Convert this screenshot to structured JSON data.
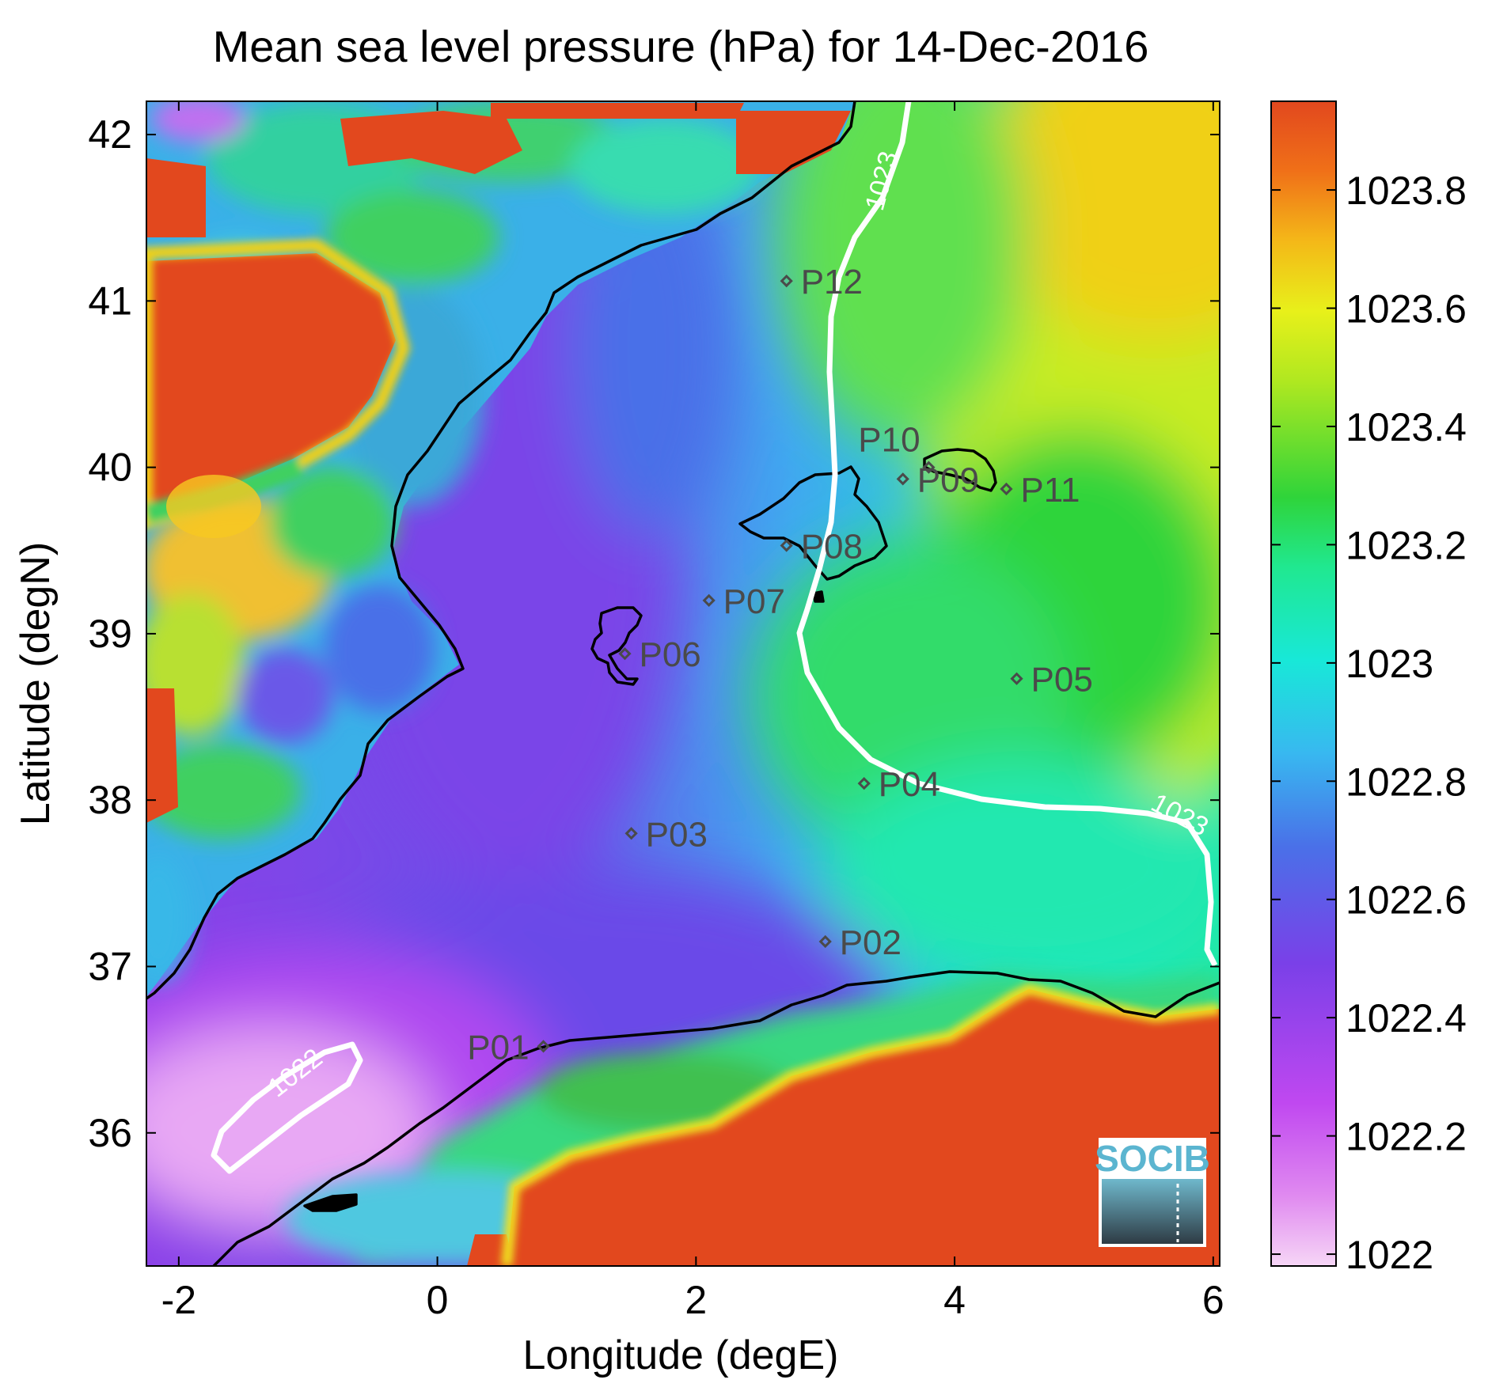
{
  "title": "Mean sea level pressure (hPa) for 14-Dec-2016",
  "xlabel": "Longitude (degE)",
  "ylabel": "Latitude (degN)",
  "logo_text": "SOCIB",
  "colors": {
    "high": "#e2481e",
    "orange": "#f19a1a",
    "yellow": "#e8f01a",
    "green": "#2fd43a",
    "cyan": "#18e8d8",
    "blue": "#3aa0f0",
    "violet": "#6a48e8",
    "magenta": "#c048f0",
    "pink": "#f4c8f4",
    "contour": "#ffffff",
    "coast": "#000000",
    "station": "#4a4a4a"
  },
  "chart_data": {
    "type": "heatmap",
    "variable": "Mean sea level pressure",
    "units": "hPa",
    "date": "14-Dec-2016",
    "xlim": [
      -2.25,
      6.05
    ],
    "ylim": [
      35.2,
      42.2
    ],
    "xticks": [
      -2,
      0,
      2,
      4,
      6
    ],
    "xtick_labels": [
      "-2",
      "0",
      "2",
      "4",
      "6"
    ],
    "yticks": [
      36,
      37,
      38,
      39,
      40,
      41,
      42
    ],
    "ytick_labels": [
      "36",
      "37",
      "38",
      "39",
      "40",
      "41",
      "42"
    ],
    "colorbar": {
      "range": [
        1021.98,
        1023.95
      ],
      "ticks": [
        1022,
        1022.2,
        1022.4,
        1022.6,
        1022.8,
        1023,
        1023.2,
        1023.4,
        1023.6,
        1023.8
      ],
      "tick_labels": [
        "1022",
        "1022.2",
        "1022.4",
        "1022.6",
        "1022.8",
        "1023",
        "1023.2",
        "1023.4",
        "1023.6",
        "1023.8"
      ],
      "placement": "right"
    },
    "contours": [
      {
        "level": 1023,
        "label": "1023",
        "label_positions": [
          [
            2.97,
            41.47
          ],
          [
            5.6,
            37.78
          ]
        ]
      },
      {
        "level": 1022,
        "label": "1022",
        "label_positions": [
          [
            -1.12,
            36.25
          ]
        ]
      }
    ],
    "stations": [
      {
        "name": "P01",
        "lon": 0.82,
        "lat": 36.52
      },
      {
        "name": "P02",
        "lon": 3.0,
        "lat": 37.15
      },
      {
        "name": "P03",
        "lon": 1.5,
        "lat": 37.8
      },
      {
        "name": "P04",
        "lon": 3.3,
        "lat": 38.1
      },
      {
        "name": "P05",
        "lon": 4.48,
        "lat": 38.73
      },
      {
        "name": "P06",
        "lon": 1.45,
        "lat": 38.88
      },
      {
        "name": "P07",
        "lon": 2.1,
        "lat": 39.2
      },
      {
        "name": "P08",
        "lon": 2.7,
        "lat": 39.53
      },
      {
        "name": "P09",
        "lon": 3.6,
        "lat": 39.93
      },
      {
        "name": "P10",
        "lon": 3.8,
        "lat": 40.0
      },
      {
        "name": "P11",
        "lon": 4.4,
        "lat": 39.87
      },
      {
        "name": "P12",
        "lon": 2.7,
        "lat": 41.12
      }
    ]
  }
}
